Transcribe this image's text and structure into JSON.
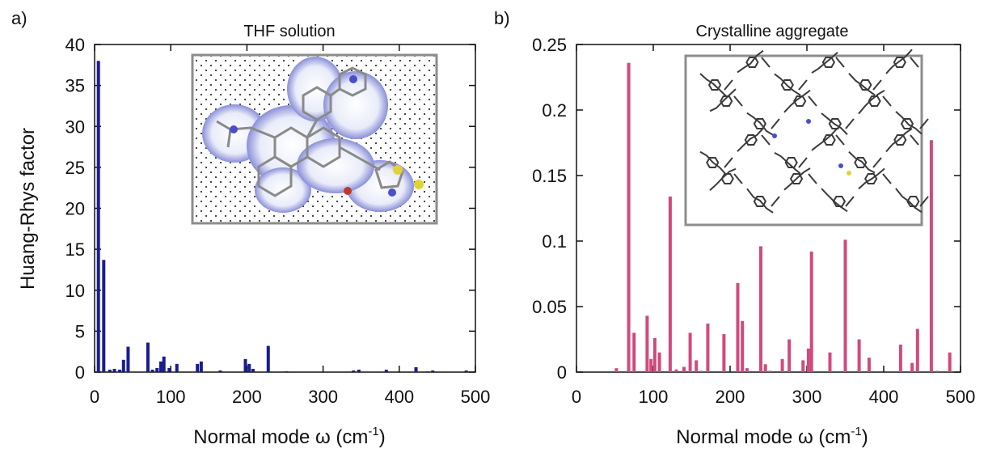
{
  "colors": {
    "panel_a_bar": "#1a1d8c",
    "panel_b_bar": "#d04a7e",
    "inset_border": "#8c8c8c"
  },
  "chart_data": [
    {
      "panel_label": "a)",
      "type": "bar",
      "title": "THF solution",
      "xlabel_main": "Normal mode ω (cm",
      "xlabel_sup": "-1",
      "xlabel_close": ")",
      "ylabel": "Huang-Rhys factor",
      "xlim": [
        0,
        500
      ],
      "ylim": [
        0,
        40
      ],
      "xticks": [
        "0",
        "100",
        "200",
        "300",
        "400",
        "500"
      ],
      "yticks": [
        "0",
        "5",
        "10",
        "15",
        "20",
        "25",
        "30",
        "35",
        "40"
      ],
      "color": "#1a1d8c",
      "inset": "molecule-in-solvent-illustration",
      "x": [
        5,
        12,
        20,
        26,
        33,
        38,
        44,
        70,
        76,
        82,
        87,
        91,
        98,
        108,
        135,
        140,
        165,
        198,
        203,
        208,
        228,
        252,
        340,
        347,
        383,
        422,
        437,
        444,
        488
      ],
      "values": [
        38.0,
        13.7,
        0.3,
        0.4,
        0.3,
        1.5,
        3.1,
        3.6,
        0.3,
        0.5,
        1.3,
        1.9,
        0.5,
        1.0,
        1.0,
        1.3,
        0.2,
        1.6,
        1.0,
        0.4,
        3.2,
        0.1,
        0.2,
        0.3,
        0.3,
        0.6,
        0.1,
        0.2,
        0.2
      ]
    },
    {
      "panel_label": "b)",
      "type": "bar",
      "title": "Crystalline aggregate",
      "xlabel_main": "Normal mode ω (cm",
      "xlabel_sup": "-1",
      "xlabel_close": ")",
      "ylabel": "",
      "xlim": [
        0,
        500
      ],
      "ylim": [
        0,
        0.25
      ],
      "xticks": [
        "0",
        "100",
        "200",
        "300",
        "400",
        "500"
      ],
      "yticks": [
        "0",
        "0.05",
        "0.1",
        "0.15",
        "0.2",
        "0.25"
      ],
      "color": "#d04a7e",
      "inset": "crystal-packing-illustration",
      "x": [
        52,
        68,
        75,
        92,
        97,
        102,
        108,
        122,
        130,
        140,
        148,
        156,
        162,
        171,
        192,
        210,
        216,
        222,
        240,
        246,
        252,
        268,
        277,
        295,
        302,
        306,
        330,
        350,
        368,
        381,
        422,
        437,
        444,
        462,
        470,
        486
      ],
      "values": [
        0.003,
        0.236,
        0.03,
        0.043,
        0.01,
        0.026,
        0.015,
        0.134,
        0.002,
        0.004,
        0.03,
        0.009,
        0.001,
        0.037,
        0.029,
        0.068,
        0.039,
        0.003,
        0.096,
        0.006,
        0.001,
        0.01,
        0.025,
        0.009,
        0.018,
        0.092,
        0.015,
        0.101,
        0.025,
        0.011,
        0.021,
        0.007,
        0.033,
        0.177,
        0.001,
        0.015
      ]
    }
  ]
}
